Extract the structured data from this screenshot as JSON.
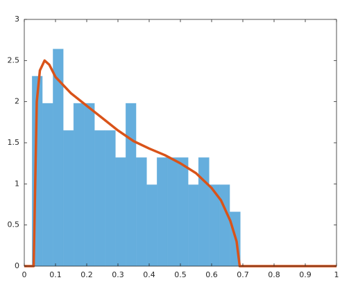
{
  "chart_data": {
    "type": "histogram",
    "bins": [
      0.025,
      0.058,
      0.092,
      0.125,
      0.158,
      0.192,
      0.225,
      0.258,
      0.292,
      0.325,
      0.358,
      0.392,
      0.425,
      0.458,
      0.492,
      0.525,
      0.558,
      0.592,
      0.625,
      0.658,
      0.692
    ],
    "values": [
      2.31,
      1.98,
      2.64,
      1.65,
      1.98,
      1.98,
      1.65,
      1.65,
      1.32,
      1.98,
      1.32,
      0.99,
      1.32,
      1.32,
      1.32,
      0.99,
      1.32,
      0.99,
      0.99,
      0.66
    ],
    "color": "#65aedd",
    "line": {
      "type": "line",
      "color": "#d95319",
      "x": [
        0,
        0.03,
        0.035,
        0.04,
        0.05,
        0.065,
        0.08,
        0.1,
        0.15,
        0.2,
        0.25,
        0.3,
        0.35,
        0.4,
        0.45,
        0.5,
        0.55,
        0.6,
        0.63,
        0.66,
        0.68,
        0.69,
        0.7,
        1
      ],
      "values": [
        0,
        0,
        1.0,
        2.0,
        2.38,
        2.5,
        2.45,
        2.3,
        2.1,
        1.95,
        1.8,
        1.65,
        1.52,
        1.43,
        1.35,
        1.25,
        1.13,
        0.95,
        0.8,
        0.55,
        0.3,
        0,
        0,
        0
      ]
    },
    "xlim": [
      0,
      1
    ],
    "xticks": [
      0,
      0.1,
      0.2,
      0.3,
      0.4,
      0.5,
      0.6,
      0.7,
      0.8,
      0.9,
      1
    ],
    "ylim": [
      0,
      3
    ],
    "yticks": [
      0,
      0.5,
      1,
      1.5,
      2,
      2.5,
      3
    ],
    "grid": false
  }
}
